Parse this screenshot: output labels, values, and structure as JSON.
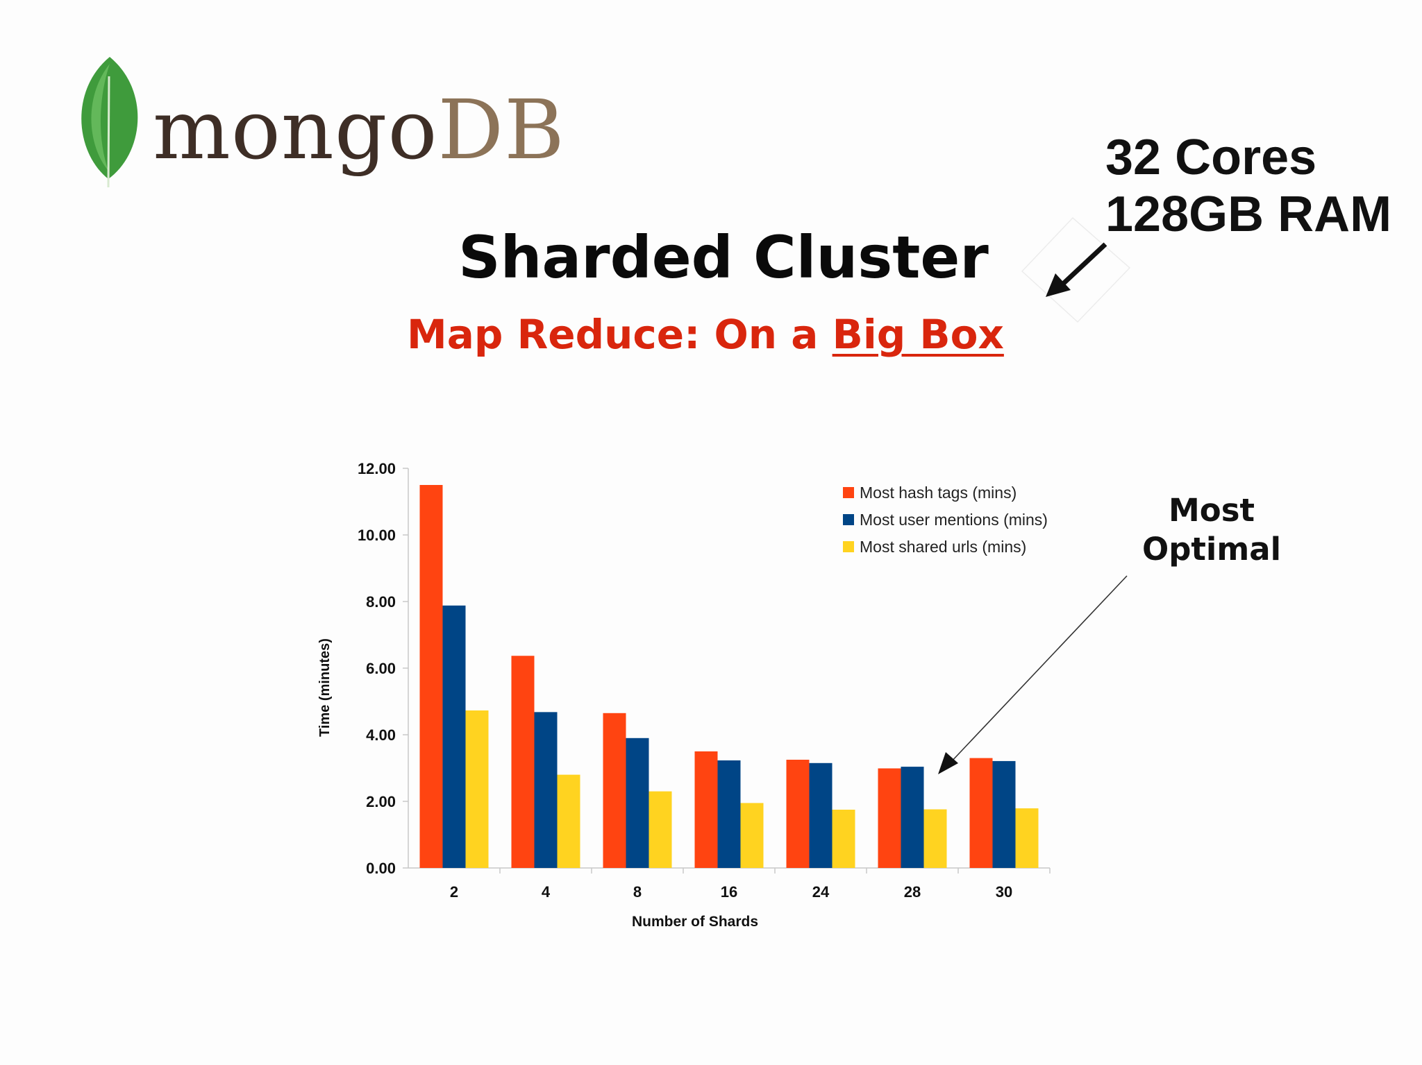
{
  "logo": {
    "mongo_text": "mongo",
    "db_text": "DB",
    "leaf_color": "#3f9b3c"
  },
  "specs": {
    "line1": "32 Cores",
    "line2": "128GB RAM"
  },
  "title": "Sharded Cluster",
  "subtitle": {
    "prefix": "Map Reduce: On a ",
    "emphasis": "Big Box",
    "color": "#d9260d"
  },
  "callout": {
    "line1": "Most",
    "line2": "Optimal"
  },
  "chart_data": {
    "type": "bar",
    "categories": [
      "2",
      "4",
      "8",
      "16",
      "24",
      "28",
      "30"
    ],
    "series": [
      {
        "name": "Most hash tags (mins)",
        "color": "#ff4411",
        "values": [
          11.5,
          6.37,
          4.65,
          3.5,
          3.25,
          2.99,
          3.3
        ]
      },
      {
        "name": "Most user mentions (mins)",
        "color": "#004586",
        "values": [
          7.88,
          4.68,
          3.9,
          3.23,
          3.15,
          3.04,
          3.21
        ]
      },
      {
        "name": "Most shared urls (mins)",
        "color": "#ffd320",
        "values": [
          4.73,
          2.8,
          2.3,
          1.95,
          1.75,
          1.76,
          1.79
        ]
      }
    ],
    "xlabel": "Number of Shards",
    "ylabel": "Time (minutes)",
    "ylim": [
      0,
      12
    ],
    "yticks": [
      "0.00",
      "2.00",
      "4.00",
      "6.00",
      "8.00",
      "10.00",
      "12.00"
    ],
    "legend_position": "top-right",
    "grid": false
  }
}
